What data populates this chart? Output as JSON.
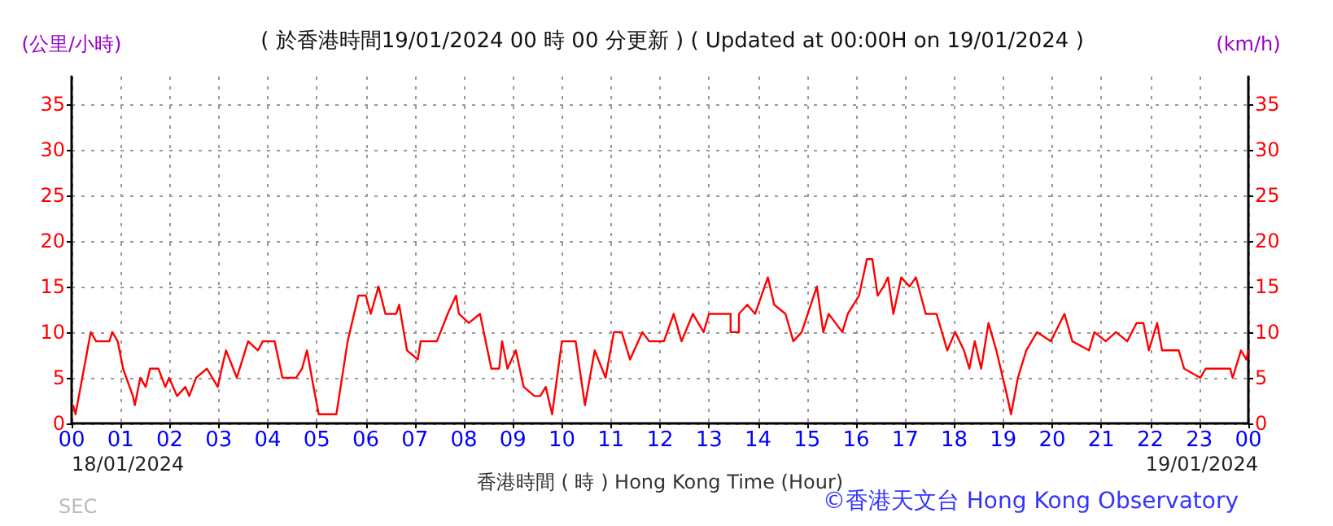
{
  "chart_data": {
    "type": "line",
    "title": "( 於香港時間19/01/2024 00 時 00 分更新 ) ( Updated at 00:00H on 19/01/2024 )",
    "ylabel": "(公里/小時)",
    "y2label": "(km/h)",
    "xlabel": "香港時間 ( 時 ) Hong Kong Time (Hour)",
    "annotations": [
      "18/01/2024",
      "19/01/2024",
      "SEC",
      "©香港天文台 Hong Kong Observatory"
    ],
    "x": [
      0.03,
      0.08,
      0.39,
      0.5,
      0.77,
      0.83,
      0.94,
      1.05,
      1.25,
      1.29,
      1.4,
      1.51,
      1.6,
      1.77,
      1.91,
      1.99,
      2.15,
      2.32,
      2.4,
      2.54,
      2.76,
      2.98,
      3.06,
      3.15,
      3.37,
      3.6,
      3.8,
      3.9,
      4.14,
      4.3,
      4.58,
      4.7,
      4.8,
      4.9,
      5.04,
      5.4,
      5.63,
      5.85,
      6.0,
      6.1,
      6.26,
      6.4,
      6.62,
      6.68,
      6.84,
      7.06,
      7.12,
      7.45,
      7.67,
      7.84,
      7.9,
      8.1,
      8.33,
      8.56,
      8.72,
      8.78,
      8.89,
      9.06,
      9.22,
      9.44,
      9.56,
      9.67,
      9.8,
      10.0,
      10.28,
      10.47,
      10.67,
      10.89,
      11.06,
      11.22,
      11.39,
      11.64,
      11.78,
      12.08,
      12.28,
      12.44,
      12.67,
      12.89,
      13.0,
      13.44,
      13.44,
      13.61,
      13.61,
      13.78,
      13.94,
      14.2,
      14.33,
      14.56,
      14.72,
      14.89,
      15.2,
      15.33,
      15.44,
      15.72,
      15.83,
      16.06,
      16.22,
      16.33,
      16.44,
      16.56,
      16.65,
      16.76,
      16.92,
      17.09,
      17.22,
      17.42,
      17.64,
      17.86,
      18.02,
      18.2,
      18.31,
      18.42,
      18.55,
      18.7,
      18.86,
      19.08,
      19.16,
      19.3,
      19.47,
      19.69,
      19.97,
      20.25,
      20.41,
      20.75,
      20.86,
      21.09,
      21.3,
      21.53,
      21.72,
      21.86,
      21.97,
      22.14,
      22.24,
      22.58,
      22.69,
      23.02,
      23.13,
      23.63,
      23.68,
      23.85,
      23.96,
      24.0
    ],
    "series": [
      {
        "color": "#ff0000",
        "values": [
          2,
          1,
          10,
          9,
          9,
          10,
          9,
          6,
          3,
          2,
          5,
          4,
          6,
          6,
          4,
          5,
          3,
          4,
          3,
          5,
          6,
          4,
          6,
          8,
          5,
          9,
          8,
          9,
          9,
          5,
          5,
          6,
          8,
          5,
          1,
          1,
          9,
          14,
          14,
          12,
          15,
          12,
          12,
          13,
          8,
          7,
          9,
          9,
          12,
          14,
          12,
          11,
          12,
          6,
          6,
          9,
          6,
          8,
          4,
          3,
          3,
          4,
          1,
          9,
          9,
          2,
          8,
          5,
          10,
          10,
          7,
          10,
          9,
          9,
          12,
          9,
          12,
          10,
          12,
          12,
          10,
          10,
          12,
          13,
          12,
          16,
          13,
          12,
          9,
          10,
          15,
          10,
          12,
          10,
          12,
          14,
          18,
          18,
          14,
          15,
          16,
          12,
          16,
          15,
          16,
          12,
          12,
          8,
          10,
          8,
          6,
          9,
          6,
          11,
          8,
          3,
          1,
          5,
          8,
          10,
          9,
          12,
          9,
          8,
          10,
          9,
          10,
          9,
          11,
          11,
          8,
          11,
          8,
          8,
          6,
          5,
          6,
          6,
          5,
          8,
          7,
          8
        ]
      }
    ],
    "xlim": [
      0,
      24
    ],
    "xticks": [
      {
        "value": 0,
        "label": "00"
      },
      {
        "value": 1,
        "label": "01"
      },
      {
        "value": 2,
        "label": "02"
      },
      {
        "value": 3,
        "label": "03"
      },
      {
        "value": 4,
        "label": "04"
      },
      {
        "value": 5,
        "label": "05"
      },
      {
        "value": 6,
        "label": "06"
      },
      {
        "value": 7,
        "label": "07"
      },
      {
        "value": 8,
        "label": "08"
      },
      {
        "value": 9,
        "label": "09"
      },
      {
        "value": 10,
        "label": "10"
      },
      {
        "value": 11,
        "label": "11"
      },
      {
        "value": 12,
        "label": "12"
      },
      {
        "value": 13,
        "label": "13"
      },
      {
        "value": 14,
        "label": "14"
      },
      {
        "value": 15,
        "label": "15"
      },
      {
        "value": 16,
        "label": "16"
      },
      {
        "value": 17,
        "label": "17"
      },
      {
        "value": 18,
        "label": "18"
      },
      {
        "value": 19,
        "label": "19"
      },
      {
        "value": 20,
        "label": "20"
      },
      {
        "value": 21,
        "label": "21"
      },
      {
        "value": 22,
        "label": "22"
      },
      {
        "value": 23,
        "label": "23"
      },
      {
        "value": 24,
        "label": "00"
      }
    ],
    "ylim": [
      0,
      38
    ],
    "yticks": [
      0,
      5,
      10,
      15,
      20,
      25,
      30,
      35
    ],
    "y2lim": [
      0,
      38
    ],
    "y2ticks": [
      0,
      5,
      10,
      15,
      20,
      25,
      30,
      35
    ],
    "grid": true,
    "marker": "none",
    "line_style": "solid"
  }
}
